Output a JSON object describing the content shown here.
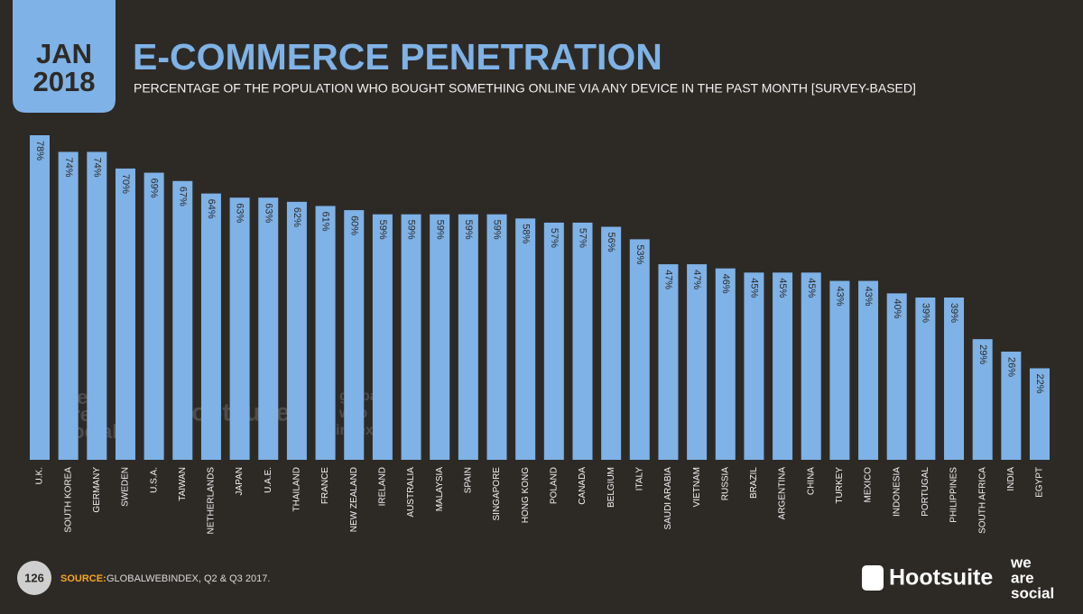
{
  "header": {
    "month": "JAN",
    "year": "2018"
  },
  "chart_data": {
    "type": "bar",
    "title": "E-COMMERCE PENETRATION",
    "subtitle": "PERCENTAGE OF THE POPULATION WHO BOUGHT SOMETHING ONLINE VIA ANY DEVICE IN THE PAST MONTH [SURVEY-BASED]",
    "categories": [
      "U.K.",
      "SOUTH KOREA",
      "GERMANY",
      "SWEDEN",
      "U.S.A.",
      "TAIWAN",
      "NETHERLANDS",
      "JAPAN",
      "U.A.E.",
      "THAILAND",
      "FRANCE",
      "NEW ZEALAND",
      "IRELAND",
      "AUSTRALIA",
      "MALAYSIA",
      "SPAIN",
      "SINGAPORE",
      "HONG KONG",
      "POLAND",
      "CANADA",
      "BELGIUM",
      "ITALY",
      "SAUDI ARABIA",
      "VIETNAM",
      "RUSSIA",
      "BRAZIL",
      "ARGENTINA",
      "CHINA",
      "TURKEY",
      "MEXICO",
      "INDONESIA",
      "PORTUGAL",
      "PHILIPPINES",
      "SOUTH AFRICA",
      "INDIA",
      "EGYPT"
    ],
    "values": [
      78,
      74,
      74,
      70,
      69,
      67,
      64,
      63,
      63,
      62,
      61,
      60,
      59,
      59,
      59,
      59,
      59,
      58,
      57,
      57,
      56,
      53,
      47,
      47,
      46,
      45,
      45,
      45,
      43,
      43,
      40,
      39,
      39,
      29,
      26,
      22
    ],
    "value_labels": [
      "78%",
      "74%",
      "74%",
      "70%",
      "69%",
      "67%",
      "64%",
      "63%",
      "63%",
      "62%",
      "61%",
      "60%",
      "59%",
      "59%",
      "59%",
      "59%",
      "59%",
      "58%",
      "57%",
      "57%",
      "56%",
      "53%",
      "47%",
      "47%",
      "46%",
      "45%",
      "45%",
      "45%",
      "43%",
      "43%",
      "40%",
      "39%",
      "39%",
      "29%",
      "26%",
      "22%"
    ],
    "color": "#7fb2e6"
  },
  "footer": {
    "page": "126",
    "source_label": "SOURCE:",
    "source": "GLOBALWEBINDEX, Q2 & Q3 2017."
  },
  "brands": {
    "hootsuite": "Hootsuite",
    "we_are_social": [
      "we",
      "are",
      "social"
    ],
    "globalwebindex": [
      "global",
      "web",
      "index"
    ]
  }
}
